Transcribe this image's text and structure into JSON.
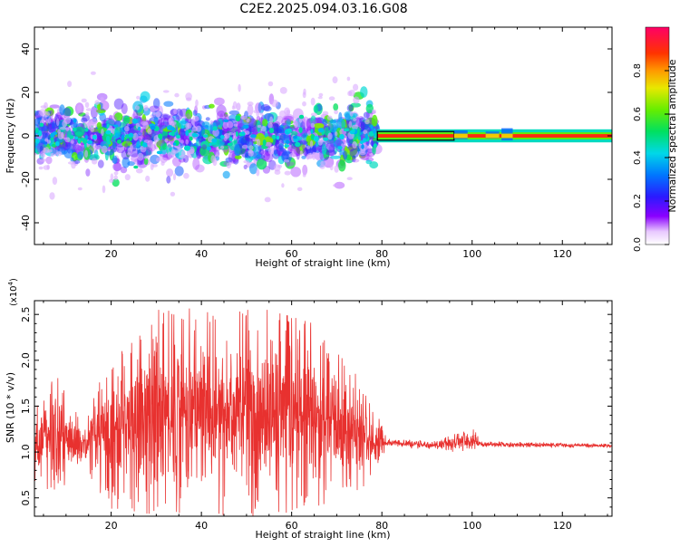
{
  "figure_title": "C2E2.2025.094.03.16.G08",
  "chart_data": [
    {
      "type": "heatmap",
      "title": "",
      "xlabel": "Height of straight line (km)",
      "ylabel": "Frequency (Hz)",
      "xlim": [
        3,
        131
      ],
      "ylim": [
        -50,
        50
      ],
      "xticks": [
        20,
        40,
        60,
        80,
        100,
        120
      ],
      "yticks": [
        -40,
        -20,
        0,
        20,
        40
      ],
      "grid": false,
      "colorbar": {
        "label": "Normalized spectral amplitude",
        "range": [
          0,
          1
        ],
        "ticks": [
          "0.0",
          "0.2",
          "0.4",
          "0.6",
          "0.8"
        ]
      },
      "description_regions": [
        {
          "x_range": [
            3,
            79
          ],
          "center_freq": 0,
          "spread_hz": 12,
          "mean_amplitude": 0.2
        },
        {
          "x_range": [
            79,
            131
          ],
          "center_freq": 0,
          "spread_hz": 2,
          "mean_amplitude": 0.85
        }
      ]
    },
    {
      "type": "line",
      "title": "",
      "xlabel": "Height of straight line (km)",
      "ylabel": "SNR (10 * v/v)",
      "y_multiplier_label": "(x10",
      "y_multiplier_exp": "4",
      "y_multiplier_suffix": ")",
      "xlim": [
        3,
        131
      ],
      "ylim": [
        0.3,
        2.65
      ],
      "xticks": [
        20,
        40,
        60,
        80,
        100,
        120
      ],
      "yticks": [
        0.5,
        1.0,
        1.5,
        2.0,
        2.5
      ],
      "ytick_labels": [
        "0.5",
        "1.0",
        "1.5",
        "2.0",
        "2.5"
      ],
      "series_color": "#e8312f",
      "envelope": [
        {
          "x": 3,
          "low": 0.65,
          "high": 1.5
        },
        {
          "x": 8,
          "low": 0.55,
          "high": 1.85
        },
        {
          "x": 14,
          "low": 0.8,
          "high": 1.3
        },
        {
          "x": 20,
          "low": 0.3,
          "high": 2.1
        },
        {
          "x": 28,
          "low": 0.3,
          "high": 2.62
        },
        {
          "x": 40,
          "low": 0.3,
          "high": 2.55
        },
        {
          "x": 55,
          "low": 0.3,
          "high": 2.55
        },
        {
          "x": 65,
          "low": 0.4,
          "high": 2.4
        },
        {
          "x": 75,
          "low": 0.55,
          "high": 1.8
        },
        {
          "x": 80,
          "low": 0.9,
          "high": 1.3
        },
        {
          "x": 81,
          "low": 1.05,
          "high": 1.15
        },
        {
          "x": 92,
          "low": 1.03,
          "high": 1.12
        },
        {
          "x": 100,
          "low": 0.97,
          "high": 1.28
        },
        {
          "x": 102,
          "low": 1.05,
          "high": 1.12
        },
        {
          "x": 131,
          "low": 1.05,
          "high": 1.09
        }
      ]
    }
  ]
}
